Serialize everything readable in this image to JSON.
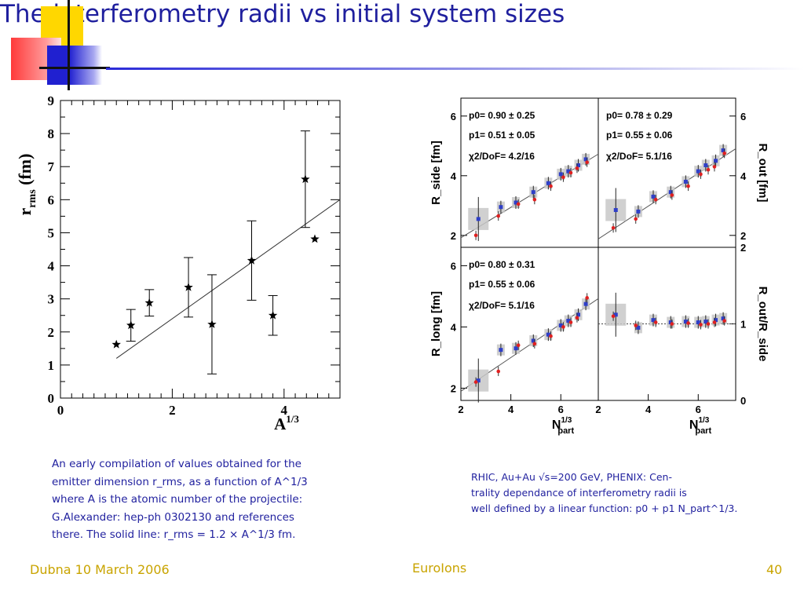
{
  "slide": {
    "title": "The interferometry radii vs initial system sizes",
    "footer_left": "Dubna 10 March 2006",
    "footer_center": "EuroIons",
    "footer_right": "40",
    "colors": {
      "title": "#1f1f9e",
      "footer": "#c9a400",
      "deco_yellow": "#ffd700",
      "deco_red": "#ff4040",
      "deco_blue": "#2a2ad8"
    }
  },
  "left_caption": {
    "lines": [
      "An early compilation of values obtained for the",
      "emitter dimension r_rms, as a function of A^1/3",
      "where A is the atomic number of the projectile:",
      "G.Alexander:  hep-ph 0302130 and references",
      "there.  The solid line:  r_rms  =  1.2 × A^1/3 fm."
    ]
  },
  "right_caption": {
    "lines": [
      "RHIC, Au+Au √s=200 GeV, PHENIX: Cen-",
      "trality dependance of interferometry radii is",
      "well defined by a linear function:  p0 + p1 N_part^1/3."
    ]
  },
  "chart_data": [
    {
      "type": "scatter",
      "xlabel": "A^1/3",
      "ylabel": "r_rms (fm)",
      "xlim": [
        0,
        5
      ],
      "ylim": [
        0,
        9
      ],
      "xticks": [
        "0",
        "2",
        "4"
      ],
      "yticks": [
        "0",
        "1",
        "2",
        "3",
        "4",
        "5",
        "6",
        "7",
        "8",
        "9"
      ],
      "points": [
        {
          "x": 1.0,
          "y": 1.62,
          "err": 0
        },
        {
          "x": 1.26,
          "y": 2.2,
          "err": 0.48
        },
        {
          "x": 1.59,
          "y": 2.88,
          "err": 0.4
        },
        {
          "x": 2.29,
          "y": 3.35,
          "err": 0.9
        },
        {
          "x": 2.71,
          "y": 2.23,
          "err": 1.5
        },
        {
          "x": 3.42,
          "y": 4.16,
          "err": 1.2
        },
        {
          "x": 3.8,
          "y": 2.5,
          "err": 0.6
        },
        {
          "x": 4.38,
          "y": 6.62,
          "err": 1.46
        },
        {
          "x": 4.55,
          "y": 4.81,
          "err": 0
        }
      ],
      "fit_line": {
        "x": [
          1.0,
          5.0
        ],
        "y": [
          1.2,
          6.0
        ]
      }
    },
    {
      "type": "scatter",
      "title": "",
      "xlabel": "N_part^1/3",
      "xticks": [
        "2",
        "4",
        "6"
      ],
      "xlim": [
        2,
        7.5
      ],
      "panels": [
        {
          "name": "R_side",
          "ylabel": "R_side [fm]",
          "ylim": [
            1.6,
            6.6
          ],
          "yticks": [
            "2",
            "4",
            "6"
          ],
          "p0": "p0= 0.90 ± 0.25",
          "p1": "p1= 0.51 ± 0.05",
          "chi2": "χ2/DoF= 4.2/16",
          "fit": [
            0.9,
            0.51
          ],
          "blue_x": [
            2.7,
            3.6,
            4.2,
            4.9,
            5.5,
            6.0,
            6.3,
            6.7,
            7.0
          ],
          "blue_y": [
            2.55,
            2.95,
            3.1,
            3.45,
            3.75,
            4.05,
            4.15,
            4.35,
            4.55
          ],
          "red_x": [
            2.6,
            3.5,
            4.3,
            4.95,
            5.6,
            6.1,
            6.4,
            6.65,
            7.05
          ],
          "red_y": [
            2.0,
            2.65,
            3.05,
            3.2,
            3.65,
            3.95,
            4.1,
            4.25,
            4.45
          ]
        },
        {
          "name": "R_out",
          "ylabel": "R_out [fm]",
          "ylim": [
            1.6,
            6.6
          ],
          "yticks": [
            "2",
            "4",
            "6"
          ],
          "p0": "p0= 0.78 ± 0.29",
          "p1": "p1= 0.55 ± 0.06",
          "chi2": "χ2/DoF= 5.1/16",
          "fit": [
            0.78,
            0.55
          ],
          "blue_x": [
            2.7,
            3.6,
            4.2,
            4.9,
            5.5,
            6.0,
            6.3,
            6.7,
            7.0
          ],
          "blue_y": [
            2.85,
            2.8,
            3.3,
            3.45,
            3.8,
            4.15,
            4.35,
            4.5,
            4.85
          ],
          "red_x": [
            2.6,
            3.5,
            4.3,
            4.95,
            5.6,
            6.1,
            6.4,
            6.65,
            7.05
          ],
          "red_y": [
            2.25,
            2.55,
            3.2,
            3.35,
            3.65,
            4.05,
            4.2,
            4.3,
            4.75
          ]
        },
        {
          "name": "R_long",
          "ylabel": "R_long [fm]",
          "ylim": [
            1.6,
            6.6
          ],
          "yticks": [
            "2",
            "4",
            "6"
          ],
          "p0": "p0= 0.80 ± 0.31",
          "p1": "p1= 0.55 ± 0.06",
          "chi2": "χ2/DoF= 5.1/16",
          "fit": [
            0.8,
            0.55
          ],
          "blue_x": [
            2.7,
            3.6,
            4.2,
            4.9,
            5.5,
            6.0,
            6.3,
            6.7,
            7.0
          ],
          "blue_y": [
            2.25,
            3.25,
            3.3,
            3.55,
            3.75,
            4.05,
            4.2,
            4.4,
            4.75
          ],
          "red_x": [
            2.6,
            3.5,
            4.3,
            4.95,
            5.6,
            6.1,
            6.4,
            6.65,
            7.05
          ],
          "red_y": [
            2.2,
            2.55,
            3.4,
            3.45,
            3.7,
            4.0,
            4.15,
            4.3,
            4.95
          ]
        },
        {
          "name": "R_out/R_side",
          "ylabel": "R_out/R_side",
          "ylim": [
            0,
            2
          ],
          "yticks": [
            "0",
            "1",
            "2"
          ],
          "reference_line": 1,
          "blue_x": [
            2.7,
            3.6,
            4.2,
            4.9,
            5.5,
            6.0,
            6.3,
            6.7,
            7.0
          ],
          "blue_y": [
            1.12,
            0.95,
            1.05,
            1.02,
            1.03,
            1.02,
            1.03,
            1.05,
            1.07
          ],
          "red_x": [
            2.6,
            3.5,
            4.3,
            4.95,
            5.6,
            6.1,
            6.4,
            6.65,
            7.05
          ],
          "red_y": [
            1.1,
            0.98,
            1.02,
            1.0,
            1.01,
            0.99,
            1.0,
            1.02,
            1.04
          ]
        }
      ]
    }
  ]
}
